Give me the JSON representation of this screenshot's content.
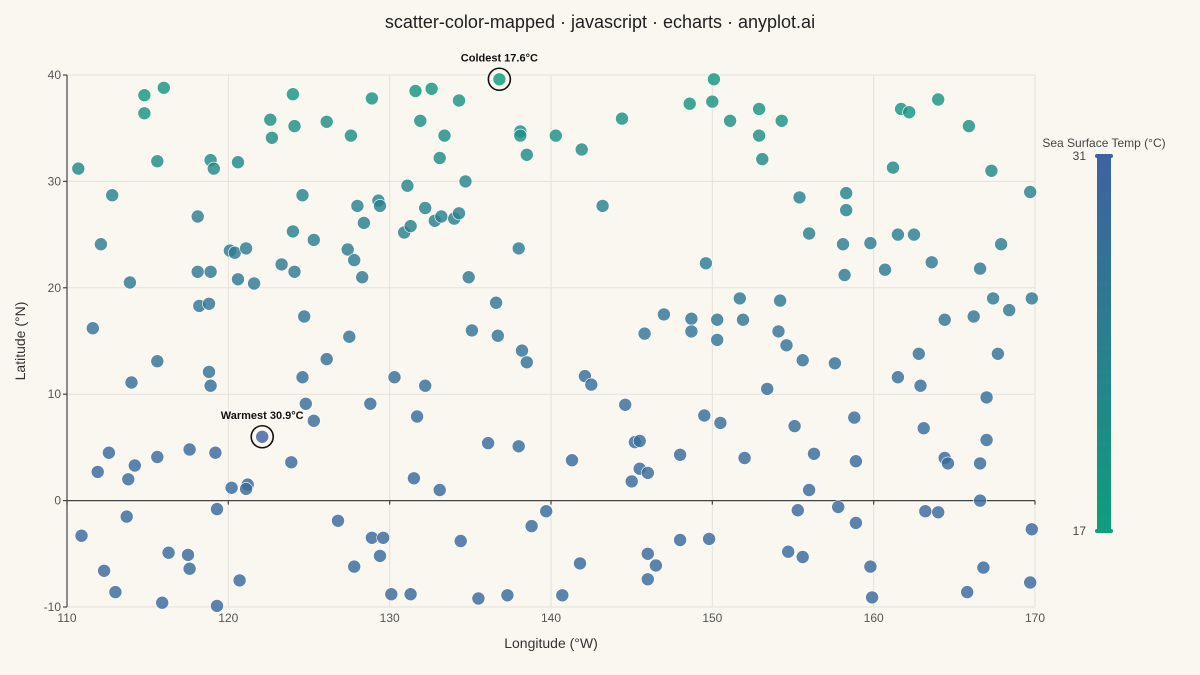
{
  "chart_data": {
    "type": "scatter",
    "title": "scatter-color-mapped · javascript · echarts · anyplot.ai",
    "xlabel": "Longitude (°W)",
    "ylabel": "Latitude (°N)",
    "xlim": [
      110,
      170
    ],
    "ylim": [
      -10,
      40
    ],
    "xticks": [
      110,
      120,
      130,
      140,
      150,
      160,
      170
    ],
    "yticks": [
      -10,
      0,
      10,
      20,
      30,
      40
    ],
    "grid": true,
    "colorbar": {
      "title": "Sea Surface Temp (°C)",
      "min": 17,
      "max": 31,
      "max_label": "31",
      "min_label": "17",
      "color_low": "#0E9E7C",
      "color_mid": "#2A7F8E",
      "color_high": "#3F62A0"
    },
    "annotations": [
      {
        "text": "Coldest 17.6°C",
        "x": 136.8,
        "y": 39.6,
        "value": 17.6
      },
      {
        "text": "Warmest 30.9°C",
        "x": 122.1,
        "y": 6.0,
        "value": 30.9
      }
    ],
    "points": [
      [
        110.7,
        31.2,
        22.5
      ],
      [
        111.6,
        16.2,
        27.0
      ],
      [
        112.1,
        24.1,
        25.0
      ],
      [
        112.8,
        28.7,
        23.5
      ],
      [
        112.6,
        4.5,
        29.5
      ],
      [
        111.9,
        2.7,
        29.8
      ],
      [
        110.9,
        -3.3,
        30.0
      ],
      [
        112.3,
        -6.6,
        29.5
      ],
      [
        113.0,
        -8.6,
        29.0
      ],
      [
        113.7,
        -1.5,
        29.0
      ],
      [
        113.8,
        2.0,
        29.0
      ],
      [
        114.2,
        3.3,
        29.0
      ],
      [
        113.9,
        20.5,
        25.5
      ],
      [
        114.0,
        11.1,
        28.0
      ],
      [
        114.8,
        38.1,
        19.0
      ],
      [
        114.8,
        36.4,
        19.5
      ],
      [
        115.6,
        31.9,
        21.5
      ],
      [
        116.0,
        38.8,
        19.0
      ],
      [
        115.6,
        13.1,
        27.5
      ],
      [
        115.6,
        4.1,
        28.5
      ],
      [
        116.3,
        -4.9,
        29.0
      ],
      [
        115.9,
        -9.6,
        29.5
      ],
      [
        117.5,
        -5.1,
        29.0
      ],
      [
        117.6,
        -6.4,
        29.0
      ],
      [
        117.6,
        4.8,
        29.5
      ],
      [
        118.1,
        26.7,
        24.5
      ],
      [
        118.1,
        21.5,
        25.5
      ],
      [
        118.2,
        18.3,
        26.5
      ],
      [
        118.9,
        32.0,
        21.5
      ],
      [
        119.1,
        31.2,
        22.0
      ],
      [
        118.9,
        21.5,
        25.5
      ],
      [
        118.8,
        18.5,
        26.5
      ],
      [
        118.8,
        12.1,
        27.5
      ],
      [
        118.9,
        10.8,
        28.0
      ],
      [
        119.2,
        4.5,
        29.0
      ],
      [
        119.3,
        -0.8,
        29.5
      ],
      [
        119.3,
        -9.9,
        29.5
      ],
      [
        120.1,
        23.5,
        25.0
      ],
      [
        120.6,
        31.8,
        22.0
      ],
      [
        120.4,
        23.3,
        25.0
      ],
      [
        120.6,
        20.8,
        26.0
      ],
      [
        121.1,
        23.7,
        25.0
      ],
      [
        121.6,
        20.4,
        26.0
      ],
      [
        120.2,
        1.2,
        29.0
      ],
      [
        121.2,
        1.5,
        29.0
      ],
      [
        121.1,
        1.1,
        29.0
      ],
      [
        120.7,
        -7.5,
        29.5
      ],
      [
        122.6,
        35.8,
        20.5
      ],
      [
        122.7,
        34.1,
        21.0
      ],
      [
        123.3,
        22.2,
        25.5
      ],
      [
        124.0,
        38.2,
        19.5
      ],
      [
        124.1,
        35.2,
        20.5
      ],
      [
        124.0,
        25.3,
        24.0
      ],
      [
        124.1,
        21.5,
        25.5
      ],
      [
        124.6,
        28.7,
        23.0
      ],
      [
        125.3,
        24.5,
        24.5
      ],
      [
        124.7,
        17.3,
        26.5
      ],
      [
        124.6,
        11.6,
        28.0
      ],
      [
        124.8,
        9.1,
        28.5
      ],
      [
        125.3,
        7.5,
        28.5
      ],
      [
        123.9,
        3.6,
        29.0
      ],
      [
        126.1,
        13.3,
        27.5
      ],
      [
        126.1,
        35.6,
        20.5
      ],
      [
        127.6,
        34.3,
        21.0
      ],
      [
        127.4,
        23.6,
        24.5
      ],
      [
        127.8,
        22.6,
        25.0
      ],
      [
        128.3,
        21.0,
        25.5
      ],
      [
        128.0,
        27.7,
        23.5
      ],
      [
        128.4,
        26.1,
        24.0
      ],
      [
        127.5,
        15.4,
        27.0
      ],
      [
        126.8,
        -1.9,
        29.5
      ],
      [
        128.9,
        -3.5,
        29.5
      ],
      [
        127.8,
        -6.2,
        29.0
      ],
      [
        128.9,
        37.8,
        19.5
      ],
      [
        128.8,
        9.1,
        28.5
      ],
      [
        129.3,
        28.2,
        23.0
      ],
      [
        129.4,
        27.7,
        23.5
      ],
      [
        129.6,
        -3.5,
        29.5
      ],
      [
        129.4,
        -5.2,
        29.0
      ],
      [
        130.1,
        -8.8,
        29.0
      ],
      [
        131.3,
        -8.8,
        29.0
      ],
      [
        130.3,
        11.6,
        28.0
      ],
      [
        131.1,
        29.6,
        23.0
      ],
      [
        130.9,
        25.2,
        24.0
      ],
      [
        131.3,
        25.8,
        24.0
      ],
      [
        131.6,
        38.5,
        19.0
      ],
      [
        131.9,
        35.7,
        20.5
      ],
      [
        132.6,
        38.7,
        19.0
      ],
      [
        132.2,
        27.5,
        23.5
      ],
      [
        132.2,
        10.8,
        28.0
      ],
      [
        131.7,
        7.9,
        28.5
      ],
      [
        131.5,
        2.1,
        29.0
      ],
      [
        132.8,
        26.3,
        24.0
      ],
      [
        133.2,
        26.7,
        24.0
      ],
      [
        133.1,
        32.2,
        21.5
      ],
      [
        133.4,
        34.3,
        21.0
      ],
      [
        134.3,
        37.6,
        19.5
      ],
      [
        133.1,
        1.0,
        29.0
      ],
      [
        134.0,
        26.5,
        24.0
      ],
      [
        134.3,
        27.0,
        23.5
      ],
      [
        134.7,
        30.0,
        22.5
      ],
      [
        134.9,
        21.0,
        25.5
      ],
      [
        135.1,
        16.0,
        27.0
      ],
      [
        134.4,
        -3.8,
        29.5
      ],
      [
        135.5,
        -9.2,
        29.5
      ],
      [
        136.1,
        5.4,
        28.5
      ],
      [
        136.6,
        18.6,
        26.5
      ],
      [
        136.7,
        15.5,
        27.0
      ],
      [
        136.8,
        39.6,
        17.6
      ],
      [
        138.1,
        34.7,
        20.5
      ],
      [
        138.1,
        34.3,
        20.5
      ],
      [
        138.5,
        32.5,
        21.5
      ],
      [
        138.0,
        23.7,
        25.0
      ],
      [
        138.2,
        14.1,
        27.5
      ],
      [
        138.5,
        13.0,
        27.5
      ],
      [
        138.0,
        5.1,
        28.5
      ],
      [
        137.3,
        -8.9,
        29.0
      ],
      [
        138.8,
        -2.4,
        29.5
      ],
      [
        139.7,
        -1.0,
        29.0
      ],
      [
        140.3,
        34.3,
        20.5
      ],
      [
        140.7,
        -8.9,
        29.0
      ],
      [
        141.3,
        3.8,
        29.0
      ],
      [
        141.9,
        33.0,
        21.5
      ],
      [
        142.1,
        11.7,
        28.0
      ],
      [
        142.5,
        10.9,
        28.0
      ],
      [
        141.8,
        -5.9,
        29.0
      ],
      [
        143.2,
        27.7,
        23.5
      ],
      [
        144.4,
        35.9,
        20.0
      ],
      [
        144.6,
        9.0,
        28.5
      ],
      [
        145.0,
        1.8,
        29.0
      ],
      [
        145.2,
        5.5,
        28.5
      ],
      [
        145.5,
        5.6,
        28.5
      ],
      [
        145.5,
        3.0,
        29.0
      ],
      [
        145.8,
        15.7,
        27.0
      ],
      [
        146.0,
        2.6,
        29.0
      ],
      [
        146.0,
        -5.0,
        29.0
      ],
      [
        146.0,
        -7.4,
        29.0
      ],
      [
        146.5,
        -6.1,
        29.0
      ],
      [
        147.0,
        17.5,
        26.5
      ],
      [
        148.0,
        4.3,
        29.0
      ],
      [
        148.0,
        -3.7,
        29.5
      ],
      [
        148.6,
        37.3,
        19.5
      ],
      [
        148.7,
        17.1,
        26.5
      ],
      [
        148.7,
        15.9,
        27.0
      ],
      [
        149.5,
        8.0,
        28.5
      ],
      [
        149.6,
        22.3,
        25.0
      ],
      [
        149.8,
        -3.6,
        29.5
      ],
      [
        150.0,
        37.5,
        19.5
      ],
      [
        150.1,
        39.6,
        18.5
      ],
      [
        150.3,
        17.0,
        26.5
      ],
      [
        150.3,
        15.1,
        27.0
      ],
      [
        150.5,
        7.3,
        28.5
      ],
      [
        151.1,
        35.7,
        20.0
      ],
      [
        151.7,
        19.0,
        26.0
      ],
      [
        151.9,
        17.0,
        26.5
      ],
      [
        152.0,
        4.0,
        29.0
      ],
      [
        152.9,
        36.8,
        19.5
      ],
      [
        152.9,
        34.3,
        20.5
      ],
      [
        153.1,
        32.1,
        21.5
      ],
      [
        153.4,
        10.5,
        28.0
      ],
      [
        154.3,
        35.7,
        20.0
      ],
      [
        154.2,
        18.8,
        26.0
      ],
      [
        154.1,
        15.9,
        27.0
      ],
      [
        154.6,
        14.6,
        27.5
      ],
      [
        155.1,
        7.0,
        28.5
      ],
      [
        155.4,
        28.5,
        23.5
      ],
      [
        155.3,
        -0.9,
        29.5
      ],
      [
        155.6,
        13.2,
        27.5
      ],
      [
        155.6,
        -5.3,
        29.0
      ],
      [
        156.0,
        25.1,
        24.0
      ],
      [
        156.0,
        1.0,
        29.0
      ],
      [
        156.3,
        4.4,
        29.0
      ],
      [
        154.7,
        -4.8,
        29.0
      ],
      [
        157.6,
        12.9,
        27.5
      ],
      [
        157.8,
        -0.6,
        29.5
      ],
      [
        158.1,
        24.1,
        24.5
      ],
      [
        158.2,
        21.2,
        25.5
      ],
      [
        158.3,
        27.3,
        23.5
      ],
      [
        158.3,
        28.9,
        23.0
      ],
      [
        158.8,
        7.8,
        28.5
      ],
      [
        158.9,
        3.7,
        29.0
      ],
      [
        158.9,
        -2.1,
        29.5
      ],
      [
        159.8,
        24.2,
        24.5
      ],
      [
        159.8,
        -6.2,
        29.5
      ],
      [
        159.9,
        -9.1,
        29.5
      ],
      [
        160.7,
        21.7,
        25.5
      ],
      [
        161.2,
        31.3,
        22.0
      ],
      [
        161.5,
        25.0,
        24.5
      ],
      [
        161.5,
        11.6,
        28.0
      ],
      [
        161.7,
        36.8,
        19.5
      ],
      [
        162.2,
        36.5,
        19.5
      ],
      [
        162.5,
        25.0,
        24.5
      ],
      [
        162.8,
        13.8,
        27.5
      ],
      [
        162.9,
        10.8,
        28.0
      ],
      [
        163.1,
        6.8,
        28.5
      ],
      [
        163.2,
        -1.0,
        29.5
      ],
      [
        163.6,
        22.4,
        25.0
      ],
      [
        164.0,
        37.7,
        19.5
      ],
      [
        164.0,
        -1.1,
        29.5
      ],
      [
        164.4,
        17.0,
        26.5
      ],
      [
        164.4,
        4.0,
        29.0
      ],
      [
        164.6,
        3.5,
        29.0
      ],
      [
        165.8,
        -8.6,
        29.5
      ],
      [
        165.9,
        35.2,
        20.5
      ],
      [
        166.2,
        17.3,
        26.5
      ],
      [
        166.6,
        21.8,
        25.5
      ],
      [
        166.6,
        0.0,
        29.5
      ],
      [
        166.6,
        3.5,
        29.0
      ],
      [
        166.8,
        -6.3,
        29.5
      ],
      [
        167.0,
        9.7,
        28.0
      ],
      [
        167.0,
        5.7,
        28.5
      ],
      [
        167.3,
        31.0,
        22.0
      ],
      [
        167.4,
        19.0,
        26.0
      ],
      [
        167.7,
        13.8,
        27.5
      ],
      [
        167.9,
        24.1,
        24.5
      ],
      [
        168.4,
        17.9,
        26.0
      ],
      [
        169.7,
        29.0,
        23.0
      ],
      [
        169.8,
        19.0,
        26.0
      ],
      [
        169.8,
        -2.7,
        29.5
      ],
      [
        169.7,
        -7.7,
        29.5
      ],
      [
        122.1,
        6.0,
        30.9
      ]
    ]
  }
}
